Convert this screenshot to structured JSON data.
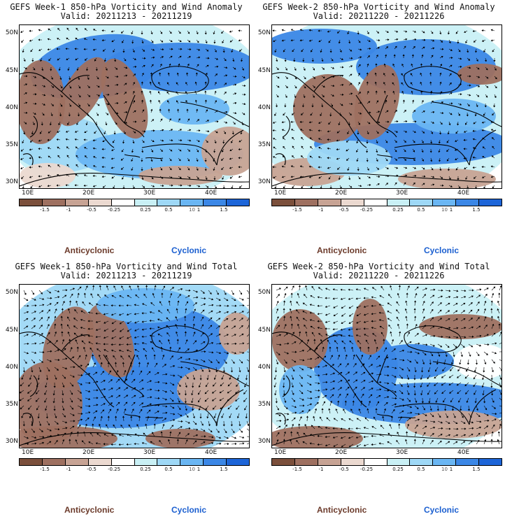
{
  "colors": {
    "cbar": [
      "#7b4f3b",
      "#9e7060",
      "#c7a394",
      "#ebd9d0",
      "#ffffff",
      "#c9f0f5",
      "#9ed8f6",
      "#6ab6f3",
      "#3b87e6",
      "#1d65d8"
    ],
    "anticyclonic": "#6b3a2a",
    "cyclonic": "#1b5fd0",
    "land_brown": "#9a6c56",
    "sea_blue": "#3b87e6"
  },
  "axes": {
    "lat_labels": [
      "50N",
      "45N",
      "40N",
      "35N",
      "30N"
    ],
    "lon_labels": [
      "10E",
      "20E",
      "30E",
      "40E"
    ]
  },
  "colorbar": {
    "tick_labels": [
      "-1.5",
      "-1",
      "-0.5",
      "-0.25",
      "0.25",
      "0.5",
      "1",
      "1.5"
    ],
    "scale_note": "10"
  },
  "legend": {
    "anticyclonic": "Anticyclonic",
    "cyclonic": "Cyclonic"
  },
  "panels": [
    {
      "title": "GEFS Week-1 850-hPa Vorticity and Wind Anomaly",
      "valid": "Valid: 20211213 - 20211219"
    },
    {
      "title": "GEFS Week-2 850-hPa Vorticity and Wind Anomaly",
      "valid": "Valid: 20211220 - 20211226"
    },
    {
      "title": "GEFS Week-1 850-hPa Vorticity and Wind Total",
      "valid": "Valid: 20211213 - 20211219"
    },
    {
      "title": "GEFS Week-2 850-hPa Vorticity and Wind Total",
      "valid": "Valid: 20211220 - 20211226"
    }
  ]
}
